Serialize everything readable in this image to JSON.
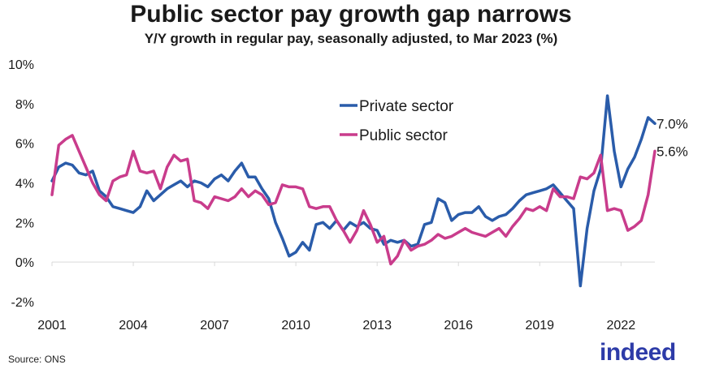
{
  "chart_data": {
    "type": "line",
    "title": "Public sector pay growth gap narrows",
    "subtitle": "Y/Y growth in regular pay, seasonally adjusted, to Mar 2023 (%)",
    "xlabel": "",
    "ylabel": "",
    "x_ticks": [
      "2001",
      "2004",
      "2007",
      "2010",
      "2013",
      "2016",
      "2019",
      "2022"
    ],
    "y_ticks": [
      "10%",
      "8%",
      "6%",
      "4%",
      "2%",
      "0%",
      "-2%"
    ],
    "ylim": [
      -2,
      10
    ],
    "xlim": [
      2001.0,
      2023.25
    ],
    "grid": false,
    "legend_position": "top-right",
    "series": [
      {
        "name": "Private sector",
        "color": "#2a5caa",
        "end_label": "7.0%",
        "points": [
          [
            2001.0,
            4.1
          ],
          [
            2001.25,
            4.8
          ],
          [
            2001.5,
            5.0
          ],
          [
            2001.75,
            4.9
          ],
          [
            2002.0,
            4.5
          ],
          [
            2002.25,
            4.4
          ],
          [
            2002.5,
            4.6
          ],
          [
            2002.75,
            3.6
          ],
          [
            2003.0,
            3.3
          ],
          [
            2003.25,
            2.8
          ],
          [
            2003.5,
            2.7
          ],
          [
            2003.75,
            2.6
          ],
          [
            2004.0,
            2.5
          ],
          [
            2004.25,
            2.8
          ],
          [
            2004.5,
            3.6
          ],
          [
            2004.75,
            3.1
          ],
          [
            2005.0,
            3.4
          ],
          [
            2005.25,
            3.7
          ],
          [
            2005.5,
            3.9
          ],
          [
            2005.75,
            4.1
          ],
          [
            2006.0,
            3.8
          ],
          [
            2006.25,
            4.1
          ],
          [
            2006.5,
            4.0
          ],
          [
            2006.75,
            3.8
          ],
          [
            2007.0,
            4.2
          ],
          [
            2007.25,
            4.4
          ],
          [
            2007.5,
            4.1
          ],
          [
            2007.75,
            4.6
          ],
          [
            2008.0,
            5.0
          ],
          [
            2008.25,
            4.3
          ],
          [
            2008.5,
            4.3
          ],
          [
            2008.75,
            3.7
          ],
          [
            2009.0,
            3.2
          ],
          [
            2009.25,
            2.0
          ],
          [
            2009.5,
            1.2
          ],
          [
            2009.75,
            0.3
          ],
          [
            2010.0,
            0.5
          ],
          [
            2010.25,
            1.0
          ],
          [
            2010.5,
            0.6
          ],
          [
            2010.75,
            1.9
          ],
          [
            2011.0,
            2.0
          ],
          [
            2011.25,
            1.7
          ],
          [
            2011.5,
            2.1
          ],
          [
            2011.75,
            1.6
          ],
          [
            2012.0,
            2.0
          ],
          [
            2012.25,
            1.8
          ],
          [
            2012.5,
            2.0
          ],
          [
            2012.75,
            1.7
          ],
          [
            2013.0,
            1.6
          ],
          [
            2013.25,
            0.9
          ],
          [
            2013.5,
            1.1
          ],
          [
            2013.75,
            1.0
          ],
          [
            2014.0,
            1.1
          ],
          [
            2014.25,
            0.8
          ],
          [
            2014.5,
            0.9
          ],
          [
            2014.75,
            1.9
          ],
          [
            2015.0,
            2.0
          ],
          [
            2015.25,
            3.2
          ],
          [
            2015.5,
            3.0
          ],
          [
            2015.75,
            2.1
          ],
          [
            2016.0,
            2.4
          ],
          [
            2016.25,
            2.5
          ],
          [
            2016.5,
            2.5
          ],
          [
            2016.75,
            2.8
          ],
          [
            2017.0,
            2.3
          ],
          [
            2017.25,
            2.1
          ],
          [
            2017.5,
            2.3
          ],
          [
            2017.75,
            2.4
          ],
          [
            2018.0,
            2.7
          ],
          [
            2018.25,
            3.1
          ],
          [
            2018.5,
            3.4
          ],
          [
            2018.75,
            3.5
          ],
          [
            2019.0,
            3.6
          ],
          [
            2019.25,
            3.7
          ],
          [
            2019.5,
            3.9
          ],
          [
            2019.75,
            3.5
          ],
          [
            2020.0,
            3.1
          ],
          [
            2020.25,
            2.7
          ],
          [
            2020.5,
            -1.2
          ],
          [
            2020.75,
            1.7
          ],
          [
            2021.0,
            3.6
          ],
          [
            2021.25,
            4.7
          ],
          [
            2021.5,
            8.4
          ],
          [
            2021.75,
            5.6
          ],
          [
            2022.0,
            3.8
          ],
          [
            2022.25,
            4.7
          ],
          [
            2022.5,
            5.3
          ],
          [
            2022.75,
            6.2
          ],
          [
            2023.0,
            7.3
          ],
          [
            2023.25,
            7.0
          ]
        ]
      },
      {
        "name": "Public sector",
        "color": "#c93c8c",
        "end_label": "5.6%",
        "points": [
          [
            2001.0,
            3.4
          ],
          [
            2001.25,
            5.9
          ],
          [
            2001.5,
            6.2
          ],
          [
            2001.75,
            6.4
          ],
          [
            2002.0,
            5.6
          ],
          [
            2002.25,
            4.8
          ],
          [
            2002.5,
            4.0
          ],
          [
            2002.75,
            3.4
          ],
          [
            2003.0,
            3.1
          ],
          [
            2003.25,
            4.1
          ],
          [
            2003.5,
            4.3
          ],
          [
            2003.75,
            4.4
          ],
          [
            2004.0,
            5.6
          ],
          [
            2004.25,
            4.6
          ],
          [
            2004.5,
            4.5
          ],
          [
            2004.75,
            4.6
          ],
          [
            2005.0,
            3.7
          ],
          [
            2005.25,
            4.8
          ],
          [
            2005.5,
            5.4
          ],
          [
            2005.75,
            5.1
          ],
          [
            2006.0,
            5.2
          ],
          [
            2006.25,
            3.1
          ],
          [
            2006.5,
            3.0
          ],
          [
            2006.75,
            2.7
          ],
          [
            2007.0,
            3.3
          ],
          [
            2007.25,
            3.2
          ],
          [
            2007.5,
            3.1
          ],
          [
            2007.75,
            3.3
          ],
          [
            2008.0,
            3.7
          ],
          [
            2008.25,
            3.3
          ],
          [
            2008.5,
            3.6
          ],
          [
            2008.75,
            3.4
          ],
          [
            2009.0,
            2.9
          ],
          [
            2009.25,
            3.0
          ],
          [
            2009.5,
            3.9
          ],
          [
            2009.75,
            3.8
          ],
          [
            2010.0,
            3.8
          ],
          [
            2010.25,
            3.7
          ],
          [
            2010.5,
            2.8
          ],
          [
            2010.75,
            2.7
          ],
          [
            2011.0,
            2.8
          ],
          [
            2011.25,
            2.8
          ],
          [
            2011.5,
            2.1
          ],
          [
            2011.75,
            1.6
          ],
          [
            2012.0,
            1.0
          ],
          [
            2012.25,
            1.6
          ],
          [
            2012.5,
            2.6
          ],
          [
            2012.75,
            1.9
          ],
          [
            2013.0,
            1.0
          ],
          [
            2013.25,
            1.3
          ],
          [
            2013.5,
            -0.1
          ],
          [
            2013.75,
            0.3
          ],
          [
            2014.0,
            1.1
          ],
          [
            2014.25,
            0.6
          ],
          [
            2014.5,
            0.8
          ],
          [
            2014.75,
            0.9
          ],
          [
            2015.0,
            1.1
          ],
          [
            2015.25,
            1.4
          ],
          [
            2015.5,
            1.2
          ],
          [
            2015.75,
            1.3
          ],
          [
            2016.0,
            1.5
          ],
          [
            2016.25,
            1.7
          ],
          [
            2016.5,
            1.5
          ],
          [
            2016.75,
            1.4
          ],
          [
            2017.0,
            1.3
          ],
          [
            2017.25,
            1.5
          ],
          [
            2017.5,
            1.7
          ],
          [
            2017.75,
            1.3
          ],
          [
            2018.0,
            1.8
          ],
          [
            2018.25,
            2.2
          ],
          [
            2018.5,
            2.7
          ],
          [
            2018.75,
            2.6
          ],
          [
            2019.0,
            2.8
          ],
          [
            2019.25,
            2.6
          ],
          [
            2019.5,
            3.7
          ],
          [
            2019.75,
            3.3
          ],
          [
            2020.0,
            3.3
          ],
          [
            2020.25,
            3.2
          ],
          [
            2020.5,
            4.3
          ],
          [
            2020.75,
            4.2
          ],
          [
            2021.0,
            4.5
          ],
          [
            2021.25,
            5.4
          ],
          [
            2021.5,
            2.6
          ],
          [
            2021.75,
            2.7
          ],
          [
            2022.0,
            2.6
          ],
          [
            2022.25,
            1.6
          ],
          [
            2022.5,
            1.8
          ],
          [
            2022.75,
            2.1
          ],
          [
            2023.0,
            3.4
          ],
          [
            2023.25,
            5.6
          ]
        ]
      }
    ]
  },
  "footer": {
    "source": "Source: ONS",
    "logo_text": "indeed"
  }
}
